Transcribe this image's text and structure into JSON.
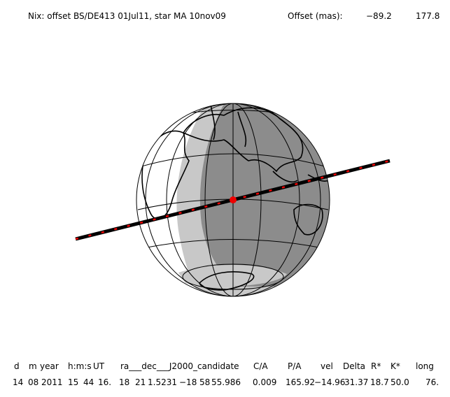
{
  "header": {
    "title": "Nix: offset BS/DE413 01Jul11, star MA 10nov09",
    "offset_label": "Offset (mas):",
    "offset_values": [
      "−89.2",
      "177.8"
    ]
  },
  "table": {
    "columns": [
      "d",
      "m",
      "year",
      "h:m:s",
      "UT",
      "ra___dec___J2000_candidate",
      "C/A",
      "P/A",
      "vel",
      "Delta",
      "R*",
      "K*",
      "long"
    ],
    "values": [
      "14",
      "08",
      "2011",
      "15",
      "44",
      "16.",
      "18",
      "21",
      "1.5231",
      "−18",
      "58",
      "55.986",
      "0.009",
      "165.92",
      "−14.96",
      "31.37",
      "18.7",
      "50.0",
      "76."
    ]
  }
}
